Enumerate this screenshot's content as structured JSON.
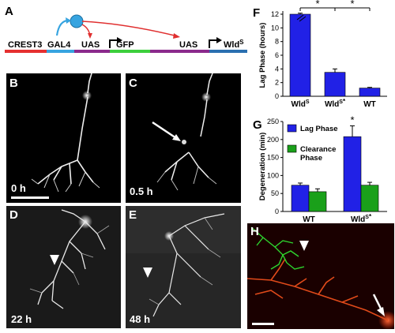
{
  "panels": {
    "A": "A",
    "B": "B",
    "C": "C",
    "D": "D",
    "E": "E",
    "F": "F",
    "G": "G",
    "H": "H"
  },
  "construct": {
    "segments": [
      "CREST3",
      "GAL4",
      "UAS",
      "GFP",
      "UAS",
      "WldS"
    ],
    "colors": [
      "#e53030",
      "#37a4e0",
      "#8b2a8c",
      "#3ccf3c",
      "#8b2a8c",
      "#2a6fb0"
    ]
  },
  "timepoints": {
    "B": "0 h",
    "C": "0.5 h",
    "D": "22 h",
    "E": "48 h"
  },
  "colors": {
    "blue_bar": "#2121e6",
    "green_bar": "#1aa01a",
    "arrow_red": "#e03030"
  },
  "chart_data": [
    {
      "type": "bar",
      "panel": "F",
      "categories": [
        "WldS",
        "WldS*",
        "WT"
      ],
      "values": [
        12,
        3.5,
        1.2
      ],
      "errors": [
        0.15,
        0.5,
        0.1
      ],
      "ylabel": "Lag Phase (hours)",
      "ylim": [
        0,
        12
      ],
      "yticks": [
        0,
        2,
        4,
        6,
        8,
        10,
        12
      ],
      "significance": [
        "*",
        "*"
      ],
      "axis_break_on_first_bar": true
    },
    {
      "type": "bar",
      "panel": "G",
      "categories": [
        "WT",
        "WldS*"
      ],
      "series": [
        {
          "name": "Lag Phase",
          "values": [
            73,
            208
          ],
          "errors": [
            6,
            30
          ]
        },
        {
          "name": "Clearance Phase",
          "values": [
            55,
            73
          ],
          "errors": [
            8,
            8
          ]
        }
      ],
      "ylabel": "Degeneration (min)",
      "ylim": [
        0,
        250
      ],
      "yticks": [
        0,
        50,
        100,
        150,
        200,
        250
      ],
      "significance": [
        "*"
      ],
      "legend": "top-left"
    }
  ]
}
